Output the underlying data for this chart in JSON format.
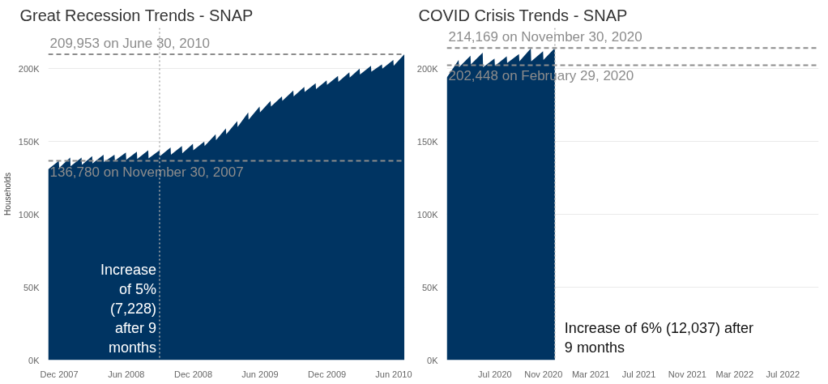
{
  "chart_data": [
    {
      "type": "area",
      "title": "Great Recession Trends - SNAP",
      "ylabel": "Households",
      "x": [
        "2007-11-01",
        "2007-11-30",
        "2007-12-01",
        "2007-12-31",
        "2008-01-01",
        "2008-01-31",
        "2008-02-01",
        "2008-02-29",
        "2008-03-01",
        "2008-03-31",
        "2008-04-01",
        "2008-04-30",
        "2008-05-01",
        "2008-05-31",
        "2008-06-01",
        "2008-06-30",
        "2008-07-01",
        "2008-07-31",
        "2008-08-01",
        "2008-08-31",
        "2008-09-01",
        "2008-09-30",
        "2008-10-01",
        "2008-10-31",
        "2008-11-01",
        "2008-11-30",
        "2008-12-01",
        "2008-12-31",
        "2009-01-01",
        "2009-01-31",
        "2009-02-01",
        "2009-02-28",
        "2009-03-01",
        "2009-03-31",
        "2009-04-01",
        "2009-04-30",
        "2009-05-01",
        "2009-05-31",
        "2009-06-01",
        "2009-06-30",
        "2009-07-01",
        "2009-07-31",
        "2009-08-01",
        "2009-08-31",
        "2009-09-01",
        "2009-09-30",
        "2009-10-01",
        "2009-10-31",
        "2009-11-01",
        "2009-11-30",
        "2009-12-01",
        "2009-12-31",
        "2010-01-01",
        "2010-01-31",
        "2010-02-01",
        "2010-02-28",
        "2010-03-01",
        "2010-03-31",
        "2010-04-01",
        "2010-04-30",
        "2010-05-01",
        "2010-05-31",
        "2010-06-01",
        "2010-06-30"
      ],
      "series": [
        {
          "color": "#003462",
          "values": [
            131000,
            136780,
            132000,
            139000,
            133000,
            139000,
            134000,
            140000,
            135000,
            141000,
            136000,
            141000,
            137000,
            142500,
            137500,
            143000,
            138000,
            144000,
            138500,
            144000,
            140000,
            146000,
            141000,
            147000,
            142000,
            148500,
            144000,
            150000,
            147000,
            155000,
            151000,
            159000,
            155000,
            164000,
            160000,
            170000,
            165000,
            174000,
            170000,
            178000,
            174000,
            181000,
            178000,
            185000,
            181000,
            187500,
            184000,
            190000,
            186000,
            192000,
            189000,
            195000,
            191000,
            197500,
            194000,
            200000,
            196000,
            202000,
            198000,
            203000,
            200000,
            206000,
            202000,
            209953
          ]
        }
      ],
      "xlim": [
        "2007-11-01",
        "2010-07-01"
      ],
      "xticks": [
        {
          "value": "2007-12-01",
          "label": "Dec 2007"
        },
        {
          "value": "2008-06-01",
          "label": "Jun 2008"
        },
        {
          "value": "2008-12-01",
          "label": "Dec 2008"
        },
        {
          "value": "2009-06-01",
          "label": "Jun 2009"
        },
        {
          "value": "2009-12-01",
          "label": "Dec 2009"
        },
        {
          "value": "2010-06-01",
          "label": "Jun 2010"
        }
      ],
      "ylim": [
        0,
        228000
      ],
      "yticks": [
        {
          "value": 0,
          "label": "0K"
        },
        {
          "value": 50000,
          "label": "50K"
        },
        {
          "value": 100000,
          "label": "100K"
        },
        {
          "value": 150000,
          "label": "150K"
        },
        {
          "value": 200000,
          "label": "200K"
        }
      ],
      "grid": "y",
      "ref_lines": [
        {
          "axis": "y",
          "value": 209953,
          "label": "209,953 on June 30, 2010",
          "color": "#8c8c8c",
          "line_style": "dashed"
        },
        {
          "axis": "y",
          "value": 136780,
          "label": "136,780 on November 30, 2007",
          "color": "#8c8c8c",
          "line_style": "dashed"
        },
        {
          "axis": "x",
          "value": "2008-08-31",
          "color": "#b0b0b0",
          "line_style": "dotted"
        }
      ],
      "annotations": [
        "Increase of 5% (7,228) after 9 months"
      ]
    },
    {
      "type": "area",
      "title": "COVID Crisis Trends - SNAP",
      "x": [
        "2020-03-01",
        "2020-03-31",
        "2020-04-01",
        "2020-04-30",
        "2020-05-01",
        "2020-05-31",
        "2020-06-01",
        "2020-06-30",
        "2020-07-01",
        "2020-07-31",
        "2020-08-01",
        "2020-08-31",
        "2020-09-01",
        "2020-09-30",
        "2020-10-01",
        "2020-10-31",
        "2020-11-01",
        "2020-11-30"
      ],
      "series": [
        {
          "color": "#003462",
          "values": [
            194000,
            206000,
            201000,
            209000,
            203000,
            211000,
            201000,
            207000,
            202000,
            208500,
            204000,
            210000,
            205000,
            214000,
            205000,
            212000,
            206000,
            214169
          ]
        }
      ],
      "xlim": [
        "2020-03-01",
        "2022-09-30"
      ],
      "xticks": [
        {
          "value": "2020-07-01",
          "label": "Jul 2020"
        },
        {
          "value": "2020-11-01",
          "label": "Nov 2020"
        },
        {
          "value": "2021-03-01",
          "label": "Mar 2021"
        },
        {
          "value": "2021-07-01",
          "label": "Jul 2021"
        },
        {
          "value": "2021-11-01",
          "label": "Nov 2021"
        },
        {
          "value": "2022-03-01",
          "label": "Mar 2022"
        },
        {
          "value": "2022-07-01",
          "label": "Jul 2022"
        }
      ],
      "ylim": [
        0,
        228000
      ],
      "yticks": [
        {
          "value": 0,
          "label": "0K"
        },
        {
          "value": 50000,
          "label": "50K"
        },
        {
          "value": 100000,
          "label": "100K"
        },
        {
          "value": 150000,
          "label": "150K"
        },
        {
          "value": 200000,
          "label": "200K"
        }
      ],
      "grid": "y",
      "ref_lines": [
        {
          "axis": "y",
          "value": 214169,
          "label": "214,169 on November 30, 2020",
          "color": "#8c8c8c",
          "line_style": "dashed"
        },
        {
          "axis": "y",
          "value": 202448,
          "label": "202,448 on February 29, 2020",
          "color": "#8c8c8c",
          "line_style": "dashed"
        },
        {
          "axis": "x",
          "value": "2020-11-30",
          "color": "#b0b0b0",
          "line_style": "dotted"
        }
      ],
      "annotations": [
        "Increase of 6% (12,037) after 9 months"
      ]
    }
  ]
}
